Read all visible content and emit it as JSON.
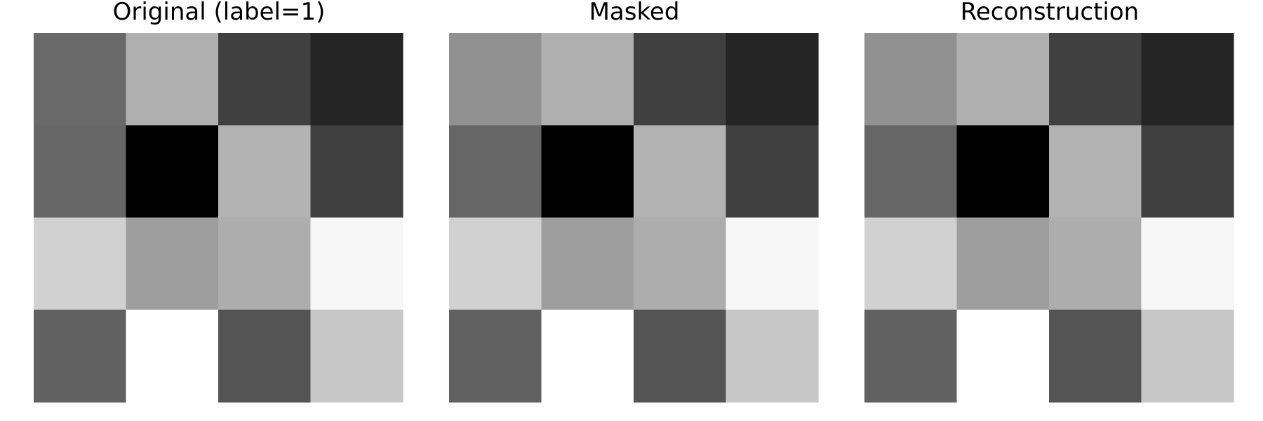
{
  "chart_data": [
    {
      "type": "heatmap",
      "title": "Original (label=1)",
      "colormap": "gray",
      "grid": false,
      "axes_visible": false,
      "rows": 4,
      "cols": 4,
      "values": [
        [
          0.41,
          0.69,
          0.25,
          0.14
        ],
        [
          0.4,
          0.0,
          0.7,
          0.25
        ],
        [
          0.82,
          0.62,
          0.68,
          0.97
        ],
        [
          0.38,
          1.0,
          0.33,
          0.78
        ]
      ]
    },
    {
      "type": "heatmap",
      "title": "Masked",
      "colormap": "gray",
      "grid": false,
      "axes_visible": false,
      "rows": 4,
      "cols": 4,
      "values": [
        [
          0.57,
          0.69,
          0.25,
          0.14
        ],
        [
          0.4,
          0.0,
          0.7,
          0.25
        ],
        [
          0.82,
          0.62,
          0.68,
          0.97
        ],
        [
          0.38,
          1.0,
          0.33,
          0.78
        ]
      ]
    },
    {
      "type": "heatmap",
      "title": "Reconstruction",
      "colormap": "gray",
      "grid": false,
      "axes_visible": false,
      "rows": 4,
      "cols": 4,
      "values": [
        [
          0.57,
          0.69,
          0.25,
          0.14
        ],
        [
          0.4,
          0.0,
          0.7,
          0.25
        ],
        [
          0.82,
          0.62,
          0.68,
          0.97
        ],
        [
          0.38,
          1.0,
          0.33,
          0.78
        ]
      ]
    }
  ]
}
